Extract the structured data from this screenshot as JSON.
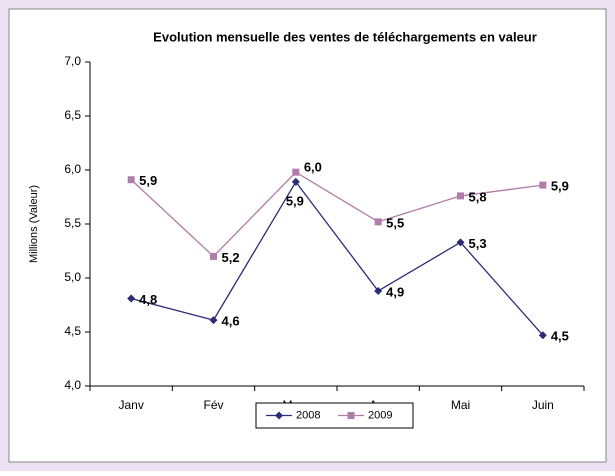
{
  "chart_data": {
    "type": "line",
    "title": "Evolution mensuelle des ventes de téléchargements en valeur",
    "ylabel": "Millions (Valeur)",
    "categories": [
      "Janv",
      "Fév",
      "Mars",
      "Avr",
      "Mai",
      "Juin"
    ],
    "series": [
      {
        "name": "2008",
        "color": "#2b2b78",
        "marker": "diamond",
        "values": [
          4.81,
          4.61,
          5.89,
          4.88,
          5.33,
          4.47
        ],
        "value_labels": [
          "4,8",
          "4,6",
          "5,9",
          "4,9",
          "5,3",
          "4,5"
        ]
      },
      {
        "name": "2009",
        "color": "#b07ca8",
        "marker": "square",
        "values": [
          5.91,
          5.2,
          5.98,
          5.52,
          5.76,
          5.86
        ],
        "value_labels": [
          "5,9",
          "5,2",
          "6,0",
          "5,5",
          "5,8",
          "5,9"
        ]
      }
    ],
    "ylim": [
      4,
      7
    ],
    "yticks": [
      {
        "value": 4,
        "label": "4,0"
      },
      {
        "value": 4.5,
        "label": "4,5"
      },
      {
        "value": 5,
        "label": "5,0"
      },
      {
        "value": 5.5,
        "label": "5,5"
      },
      {
        "value": 6,
        "label": "6,0"
      },
      {
        "value": 6.5,
        "label": "6,5"
      },
      {
        "value": 7,
        "label": "7,0"
      }
    ],
    "legend": "bottom"
  }
}
